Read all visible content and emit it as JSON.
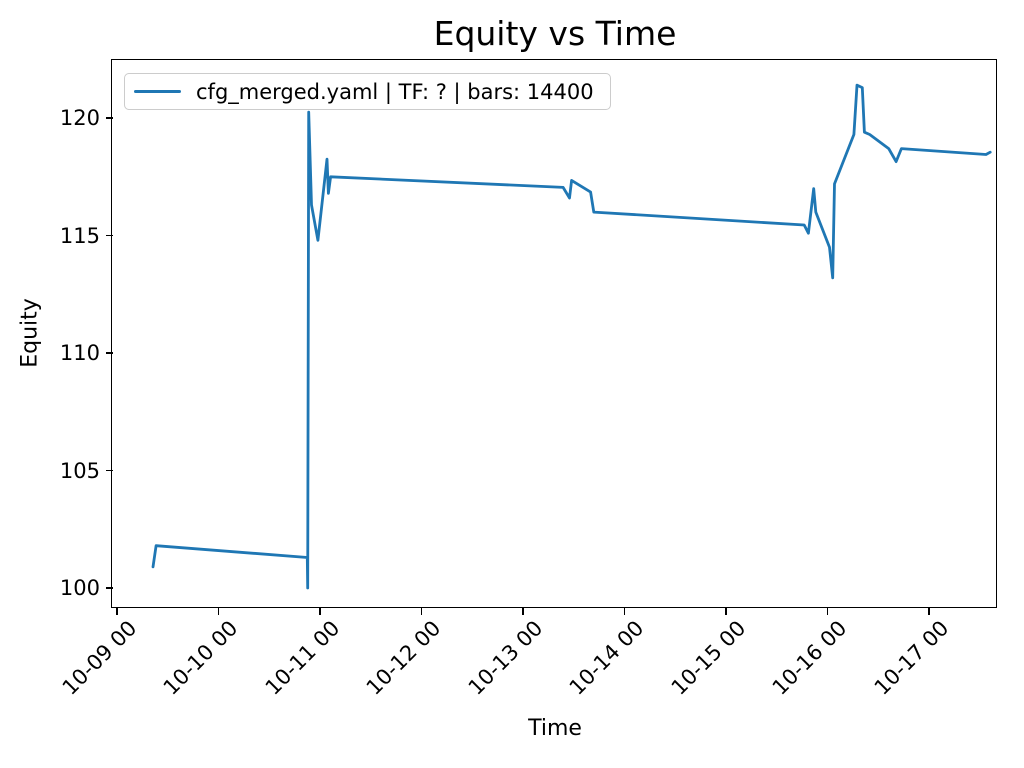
{
  "figure": {
    "title": "Equity vs Time",
    "xlabel": "Time",
    "ylabel": "Equity",
    "legend": {
      "label": "cfg_merged.yaml | TF: ? | bars: 14400",
      "position": "upper left",
      "border_color": "#cccccc"
    }
  },
  "chart_data": {
    "type": "line",
    "title": "Equity vs Time",
    "xlabel": "Time",
    "ylabel": "Equity",
    "grid": false,
    "legend_position": "upper left",
    "line_color": "#1f77b4",
    "x_tick_labels": [
      "10-09 00",
      "10-10 00",
      "10-11 00",
      "10-12 00",
      "10-13 00",
      "10-14 00",
      "10-15 00",
      "10-16 00",
      "10-17 00"
    ],
    "y_ticks": [
      100,
      105,
      110,
      115,
      120
    ],
    "y_tick_labels": [
      "100",
      "105",
      "110",
      "115",
      "120"
    ],
    "ylim": [
      99.15,
      122.43
    ],
    "xlim_hours": [
      -0.95,
      208.1
    ],
    "series": [
      {
        "name": "cfg_merged.yaml | TF: ? | bars: 14400",
        "color": "#1f77b4",
        "points": [
          [
            "10-09 08:30",
            100.9
          ],
          [
            "10-09 09:15",
            101.8
          ],
          [
            "10-10 21:00",
            101.3
          ],
          [
            "10-10 21:05",
            100.0
          ],
          [
            "10-10 21:20",
            120.25
          ],
          [
            "10-10 22:00",
            116.3
          ],
          [
            "10-10 23:30",
            114.8
          ],
          [
            "10-11 01:40",
            118.25
          ],
          [
            "10-11 02:00",
            116.8
          ],
          [
            "10-11 02:30",
            117.5
          ],
          [
            "10-13 09:30",
            117.05
          ],
          [
            "10-13 11:00",
            116.6
          ],
          [
            "10-13 11:30",
            117.35
          ],
          [
            "10-13 16:00",
            116.85
          ],
          [
            "10-13 16:45",
            116.0
          ],
          [
            "10-15 18:30",
            115.45
          ],
          [
            "10-15 19:30",
            115.1
          ],
          [
            "10-15 20:45",
            117.0
          ],
          [
            "10-15 21:15",
            116.0
          ],
          [
            "10-16 00:30",
            114.5
          ],
          [
            "10-16 01:15",
            113.2
          ],
          [
            "10-16 01:40",
            117.2
          ],
          [
            "10-16 06:15",
            119.3
          ],
          [
            "10-16 07:00",
            121.4
          ],
          [
            "10-16 08:15",
            121.3
          ],
          [
            "10-16 08:45",
            119.4
          ],
          [
            "10-16 10:00",
            119.3
          ],
          [
            "10-16 14:30",
            118.7
          ],
          [
            "10-16 16:15",
            118.15
          ],
          [
            "10-16 17:30",
            118.7
          ],
          [
            "10-17 13:30",
            118.45
          ],
          [
            "10-17 14:30",
            118.55
          ]
        ]
      }
    ]
  }
}
